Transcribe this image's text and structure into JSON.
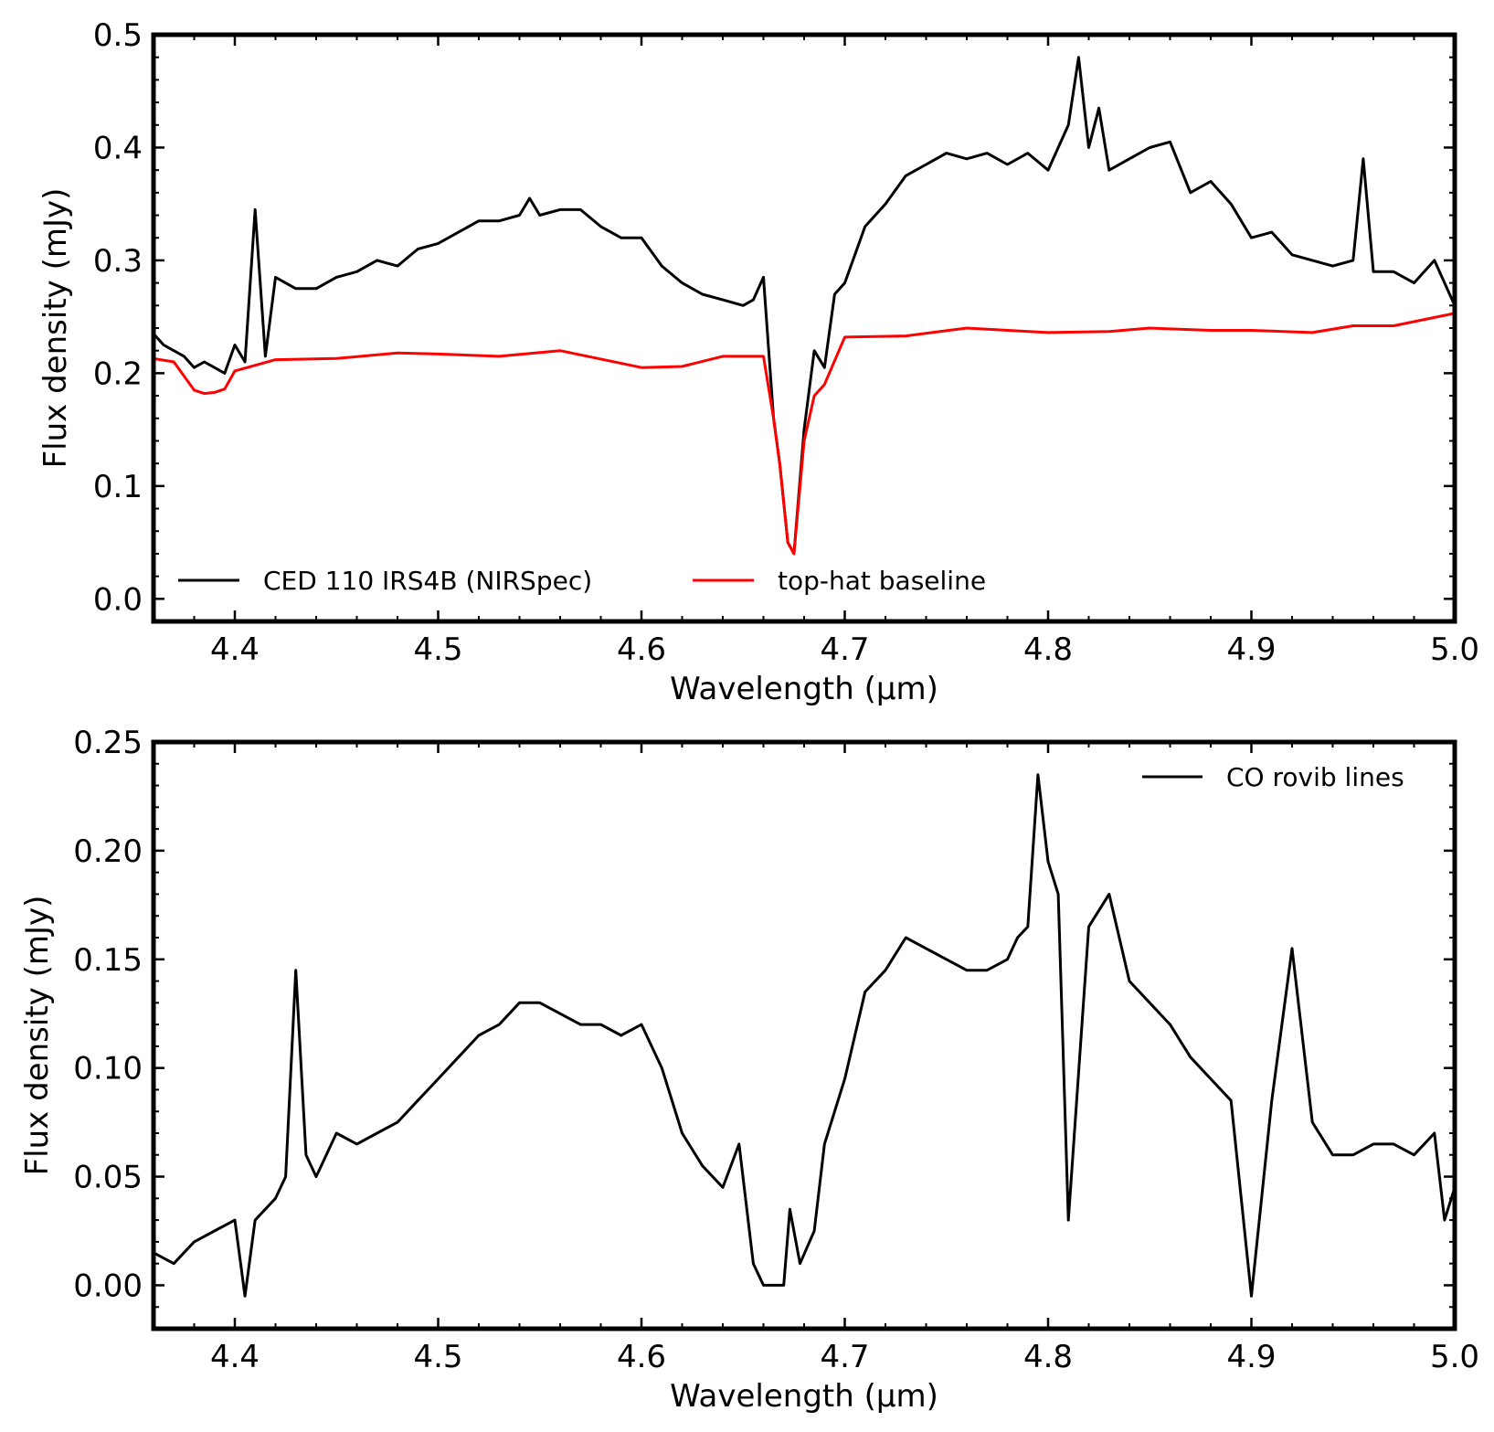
{
  "chart_data": [
    {
      "type": "line",
      "xlabel": "Wavelength (µm)",
      "ylabel": "Flux density (mJy)",
      "xlim": [
        4.36,
        5.0
      ],
      "ylim": [
        -0.02,
        0.5
      ],
      "xticks": [
        4.4,
        4.5,
        4.6,
        4.7,
        4.8,
        4.9,
        5.0
      ],
      "xtick_labels": [
        "4.4",
        "4.5",
        "4.6",
        "4.7",
        "4.8",
        "4.9",
        "5.0"
      ],
      "yticks": [
        0.0,
        0.1,
        0.2,
        0.3,
        0.4,
        0.5
      ],
      "ytick_labels": [
        "0.0",
        "0.1",
        "0.2",
        "0.3",
        "0.4",
        "0.5"
      ],
      "legend_position": "bottom-left",
      "series": [
        {
          "name": "CED 110 IRS4B (NIRSpec)",
          "color": "#000000",
          "x": [
            4.36,
            4.365,
            4.37,
            4.375,
            4.38,
            4.385,
            4.39,
            4.395,
            4.4,
            4.405,
            4.41,
            4.415,
            4.42,
            4.43,
            4.44,
            4.45,
            4.46,
            4.47,
            4.48,
            4.49,
            4.5,
            4.51,
            4.52,
            4.53,
            4.54,
            4.545,
            4.55,
            4.56,
            4.57,
            4.58,
            4.59,
            4.6,
            4.61,
            4.62,
            4.63,
            4.64,
            4.65,
            4.655,
            4.66,
            4.665,
            4.668,
            4.672,
            4.675,
            4.68,
            4.685,
            4.69,
            4.695,
            4.7,
            4.71,
            4.72,
            4.73,
            4.74,
            4.75,
            4.76,
            4.77,
            4.78,
            4.79,
            4.8,
            4.805,
            4.81,
            4.815,
            4.82,
            4.825,
            4.83,
            4.84,
            4.85,
            4.86,
            4.87,
            4.88,
            4.89,
            4.9,
            4.91,
            4.92,
            4.93,
            4.94,
            4.95,
            4.955,
            4.96,
            4.97,
            4.98,
            4.99,
            5.0
          ],
          "y": [
            0.235,
            0.225,
            0.22,
            0.215,
            0.205,
            0.21,
            0.205,
            0.2,
            0.225,
            0.21,
            0.345,
            0.215,
            0.285,
            0.275,
            0.275,
            0.285,
            0.29,
            0.3,
            0.295,
            0.31,
            0.315,
            0.325,
            0.335,
            0.335,
            0.34,
            0.355,
            0.34,
            0.345,
            0.345,
            0.33,
            0.32,
            0.32,
            0.295,
            0.28,
            0.27,
            0.265,
            0.26,
            0.265,
            0.285,
            0.16,
            0.12,
            0.05,
            0.04,
            0.15,
            0.22,
            0.205,
            0.27,
            0.28,
            0.33,
            0.35,
            0.375,
            0.385,
            0.395,
            0.39,
            0.395,
            0.385,
            0.395,
            0.38,
            0.4,
            0.42,
            0.48,
            0.4,
            0.435,
            0.38,
            0.39,
            0.4,
            0.405,
            0.36,
            0.37,
            0.35,
            0.32,
            0.325,
            0.305,
            0.3,
            0.295,
            0.3,
            0.39,
            0.29,
            0.29,
            0.28,
            0.3,
            0.26
          ]
        },
        {
          "name": "top-hat baseline",
          "color": "#ff0000",
          "x": [
            4.36,
            4.37,
            4.38,
            4.385,
            4.39,
            4.395,
            4.4,
            4.42,
            4.45,
            4.48,
            4.5,
            4.53,
            4.56,
            4.6,
            4.62,
            4.64,
            4.66,
            4.665,
            4.668,
            4.672,
            4.675,
            4.68,
            4.685,
            4.69,
            4.7,
            4.73,
            4.76,
            4.8,
            4.83,
            4.85,
            4.88,
            4.9,
            4.93,
            4.95,
            4.97,
            5.0
          ],
          "y": [
            0.213,
            0.21,
            0.185,
            0.182,
            0.183,
            0.186,
            0.202,
            0.212,
            0.213,
            0.218,
            0.217,
            0.215,
            0.22,
            0.205,
            0.206,
            0.215,
            0.215,
            0.16,
            0.12,
            0.05,
            0.04,
            0.14,
            0.18,
            0.19,
            0.232,
            0.233,
            0.24,
            0.236,
            0.237,
            0.24,
            0.238,
            0.238,
            0.236,
            0.242,
            0.242,
            0.253
          ]
        }
      ]
    },
    {
      "type": "line",
      "xlabel": "Wavelength (µm)",
      "ylabel": "Flux density (mJy)",
      "xlim": [
        4.36,
        5.0
      ],
      "ylim": [
        -0.02,
        0.25
      ],
      "xticks": [
        4.4,
        4.5,
        4.6,
        4.7,
        4.8,
        4.9,
        5.0
      ],
      "xtick_labels": [
        "4.4",
        "4.5",
        "4.6",
        "4.7",
        "4.8",
        "4.9",
        "5.0"
      ],
      "yticks": [
        0.0,
        0.05,
        0.1,
        0.15,
        0.2,
        0.25
      ],
      "ytick_labels": [
        "0.00",
        "0.05",
        "0.10",
        "0.15",
        "0.20",
        "0.25"
      ],
      "legend_position": "top-right",
      "series": [
        {
          "name": "CO rovib lines",
          "color": "#000000",
          "x": [
            4.36,
            4.37,
            4.38,
            4.39,
            4.4,
            4.405,
            4.41,
            4.42,
            4.425,
            4.43,
            4.435,
            4.44,
            4.45,
            4.46,
            4.47,
            4.48,
            4.49,
            4.5,
            4.51,
            4.52,
            4.53,
            4.54,
            4.55,
            4.56,
            4.57,
            4.58,
            4.59,
            4.6,
            4.61,
            4.615,
            4.62,
            4.63,
            4.64,
            4.648,
            4.655,
            4.66,
            4.665,
            4.67,
            4.673,
            4.678,
            4.685,
            4.69,
            4.7,
            4.71,
            4.72,
            4.73,
            4.74,
            4.75,
            4.76,
            4.77,
            4.78,
            4.785,
            4.79,
            4.795,
            4.8,
            4.805,
            4.81,
            4.82,
            4.83,
            4.84,
            4.85,
            4.86,
            4.87,
            4.88,
            4.89,
            4.9,
            4.91,
            4.92,
            4.93,
            4.94,
            4.95,
            4.96,
            4.97,
            4.98,
            4.99,
            4.995,
            5.0
          ],
          "y": [
            0.015,
            0.01,
            0.02,
            0.025,
            0.03,
            -0.005,
            0.03,
            0.04,
            0.05,
            0.145,
            0.06,
            0.05,
            0.07,
            0.065,
            0.07,
            0.075,
            0.085,
            0.095,
            0.105,
            0.115,
            0.12,
            0.13,
            0.13,
            0.125,
            0.12,
            0.12,
            0.115,
            0.12,
            0.1,
            0.085,
            0.07,
            0.055,
            0.045,
            0.065,
            0.01,
            0.0,
            0.0,
            0.0,
            0.035,
            0.01,
            0.025,
            0.065,
            0.095,
            0.135,
            0.145,
            0.16,
            0.155,
            0.15,
            0.145,
            0.145,
            0.15,
            0.16,
            0.165,
            0.235,
            0.195,
            0.18,
            0.03,
            0.165,
            0.18,
            0.14,
            0.13,
            0.12,
            0.105,
            0.095,
            0.085,
            -0.005,
            0.085,
            0.155,
            0.075,
            0.06,
            0.06,
            0.065,
            0.065,
            0.06,
            0.07,
            0.03,
            0.045
          ]
        }
      ]
    }
  ]
}
